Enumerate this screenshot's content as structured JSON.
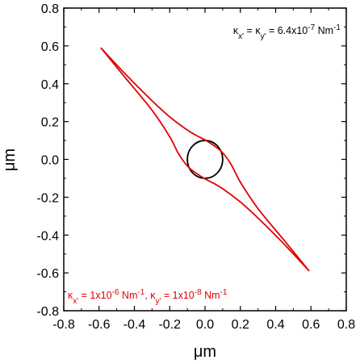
{
  "chart_data": {
    "type": "line",
    "title": "",
    "xlabel": "μm",
    "ylabel": "μm",
    "xlim": [
      -0.8,
      0.8
    ],
    "ylim": [
      -0.8,
      0.8
    ],
    "xticks": [
      "-0.8",
      "-0.6",
      "-0.4",
      "-0.2",
      "0.0",
      "0.2",
      "0.4",
      "0.6",
      "0.8"
    ],
    "yticks": [
      "-0.8",
      "-0.6",
      "-0.4",
      "-0.2",
      "0.0",
      "0.2",
      "0.4",
      "0.6",
      "0.8"
    ],
    "grid": false,
    "series": [
      {
        "name": "κx' = κy' = 6.4x10-7 Nm-1",
        "color": "#000000",
        "shape": "circle",
        "center": [
          0.0,
          0.0
        ],
        "radius": 0.1
      },
      {
        "name": "κx' = 1x10-6 Nm-1, κy' = 1x10-8 Nm-1",
        "color": "#e00000",
        "shape": "lens",
        "upper_branch": {
          "x": [
            -0.59,
            -0.45,
            -0.3,
            -0.2,
            -0.1,
            -0.05,
            0.0,
            0.05,
            0.1,
            0.15,
            0.2,
            0.3,
            0.45,
            0.59
          ],
          "y": [
            0.59,
            0.45,
            0.31,
            0.225,
            0.155,
            0.127,
            0.103,
            0.073,
            0.035,
            -0.03,
            -0.12,
            -0.26,
            -0.43,
            -0.59
          ]
        },
        "lower_branch": {
          "x": [
            -0.59,
            -0.45,
            -0.3,
            -0.2,
            -0.15,
            -0.1,
            -0.05,
            0.0,
            0.05,
            0.1,
            0.2,
            0.3,
            0.45,
            0.59
          ],
          "y": [
            0.59,
            0.43,
            0.26,
            0.12,
            0.03,
            -0.035,
            -0.073,
            -0.103,
            -0.127,
            -0.155,
            -0.225,
            -0.31,
            -0.45,
            -0.59
          ]
        }
      }
    ]
  },
  "annotations": {
    "black": {
      "k1": "κ",
      "s1": "x'",
      "mid": " = ",
      "k2": "κ",
      "s2": "y'",
      "val": " = 6.4x10",
      "exp": "-7",
      "unit": " Nm",
      "uexp": "-1"
    },
    "red": {
      "k1": "κ",
      "s1": "x'",
      "v1": " = 1x10",
      "e1": "-6",
      "u1": " Nm",
      "ue1": "-1",
      "sep": ", ",
      "k2": "κ",
      "s2": "y'",
      "v2": " = 1x10",
      "e2": "-8",
      "u2": " Nm",
      "ue2": "-1"
    }
  }
}
